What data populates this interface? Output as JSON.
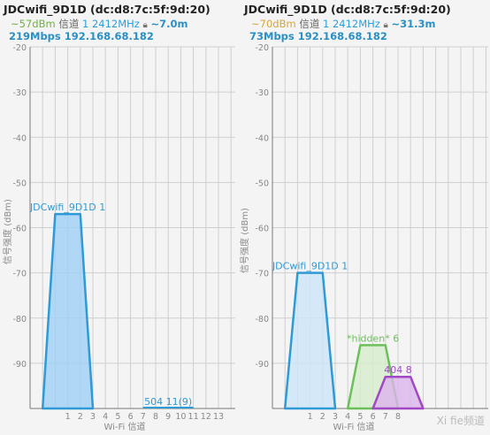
{
  "panels": {
    "left": {
      "title": "JDCwifi_9D1D (dc:d8:7c:5f:9d:20)",
      "signal": "~57dBm",
      "channel_label": "信道",
      "channel_value": "1",
      "frequency": "2412MHz",
      "distance": "~7.0m",
      "speed_ip": "219Mbps 192.168.68.182",
      "signal_color": "#6db33f"
    },
    "right": {
      "title": "JDCwifi_9D1D (dc:d8:7c:5f:9d:20)",
      "signal": "~70dBm",
      "channel_label": "信道",
      "channel_value": "1",
      "frequency": "2412MHz",
      "distance": "~31.3m",
      "speed_ip": "73Mbps 192.168.68.182",
      "signal_color": "#d4a838"
    }
  },
  "lock_icon": "lock-icon",
  "watermark": "Xi fie频道",
  "chart_data": [
    {
      "type": "area",
      "ylabel": "信号强度 (dBm)",
      "xlabel": "Wi-Fi 信道",
      "ylim": [
        -100,
        -20
      ],
      "yticks": [
        "-20",
        "-30",
        "-40",
        "-50",
        "-60",
        "-70",
        "-80",
        "-90"
      ],
      "xticks": [
        "1",
        "2",
        "3",
        "4",
        "5",
        "6",
        "7",
        "8",
        "9",
        "10",
        "11",
        "12",
        "13"
      ],
      "grid": true,
      "networks": [
        {
          "name": "JDCwifi_9D1D 1",
          "channel": 1,
          "signal": -57,
          "color": "#2f9bd6",
          "fill": "#9fd0f5"
        },
        {
          "name": "504 11(9)",
          "channel": 9,
          "signal": -100,
          "color": "#2f9bd6",
          "fill": "#9fd0f5"
        }
      ]
    },
    {
      "type": "area",
      "ylabel": "信号强度 (dBm)",
      "xlabel": "Wi-Fi 信道",
      "ylim": [
        -100,
        -20
      ],
      "yticks": [
        "-20",
        "-30",
        "-40",
        "-50",
        "-60",
        "-70",
        "-80",
        "-90"
      ],
      "xticks": [
        "1",
        "2",
        "3",
        "4",
        "5",
        "6",
        "7",
        "8"
      ],
      "grid": true,
      "networks": [
        {
          "name": "JDCwifi_9D1D 1",
          "channel": 1,
          "signal": -70,
          "color": "#2f9bd6",
          "fill": "#cde5f8"
        },
        {
          "name": "*hidden* 6",
          "channel": 6,
          "signal": -86,
          "color": "#6dbf5a",
          "fill": "#d6eecd"
        },
        {
          "name": "404 8",
          "channel": 8,
          "signal": -93,
          "color": "#a148c4",
          "fill": "#dcb4ec"
        }
      ]
    }
  ]
}
